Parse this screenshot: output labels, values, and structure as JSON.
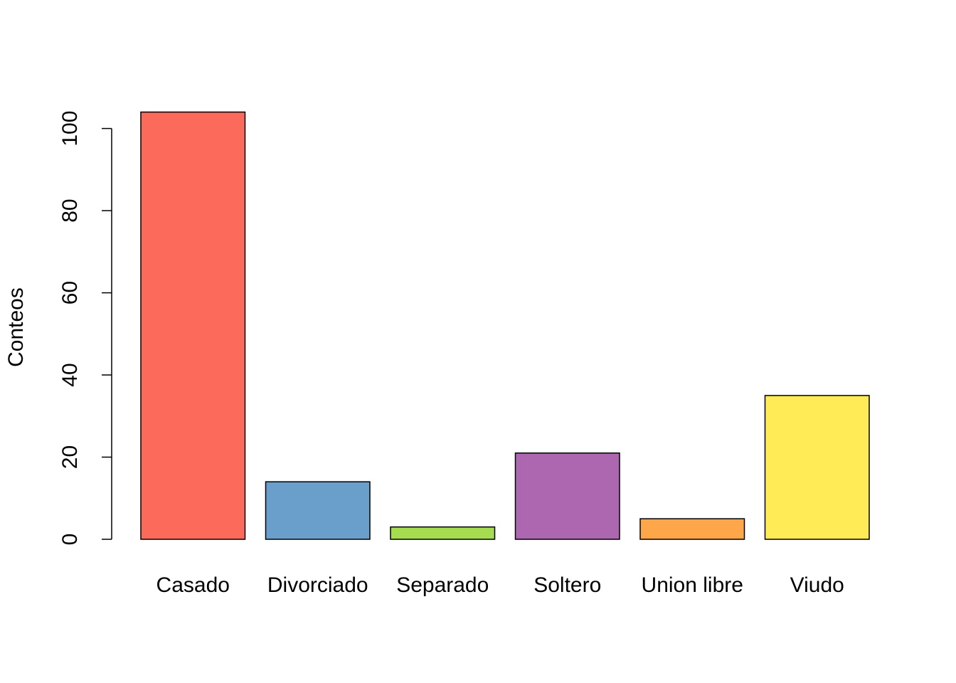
{
  "chart_data": {
    "type": "bar",
    "ylabel": "Conteos",
    "categories": [
      "Casado",
      "Divorciado",
      "Separado",
      "Soltero",
      "Union libre",
      "Viudo"
    ],
    "values": [
      104,
      14,
      3,
      21,
      5,
      35
    ],
    "colors": [
      "#fb6a5a",
      "#6a9fcb",
      "#a6dd50",
      "#ad67b0",
      "#fda64a",
      "#ffeb55"
    ],
    "ylim": [
      0,
      104
    ],
    "yticks": [
      0,
      20,
      40,
      60,
      80,
      100
    ]
  }
}
